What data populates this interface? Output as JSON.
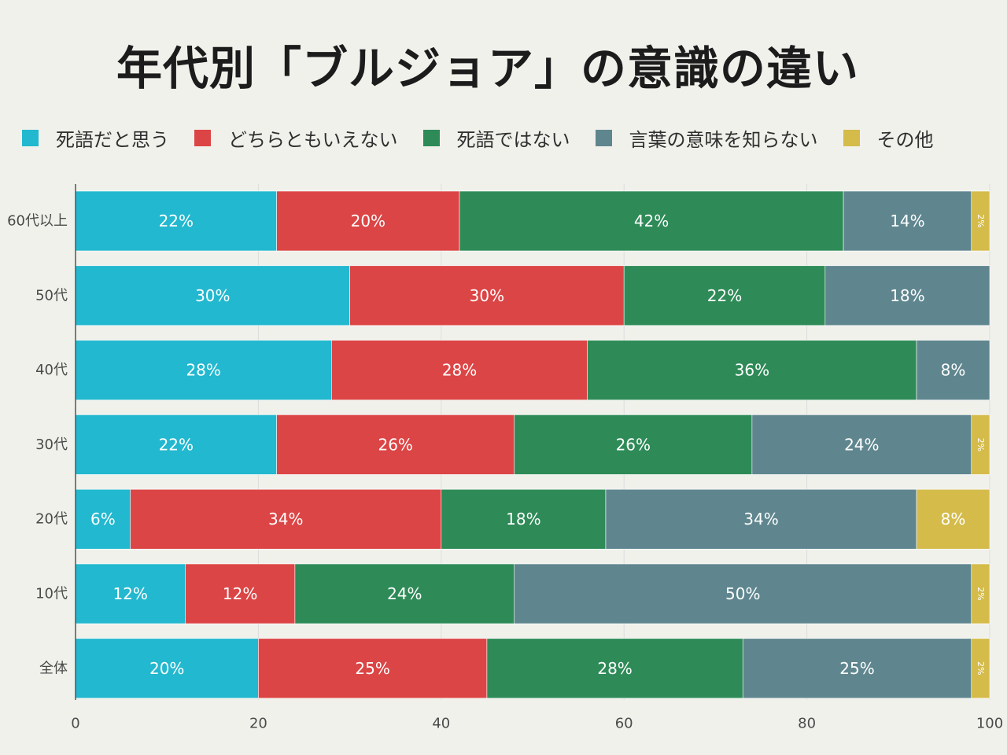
{
  "title": "年代別「ブルジョア」の意識の違い",
  "colors": {
    "background": "#f1f1ec",
    "gridline": "#dddddd",
    "axis": "#555555"
  },
  "chart_data": {
    "type": "bar",
    "orientation": "horizontal",
    "stacked": true,
    "title": "年代別「ブルジョア」の意識の違い",
    "xlabel": "",
    "ylabel": "",
    "xlim": [
      0,
      100
    ],
    "xticks": [
      0,
      20,
      40,
      60,
      80,
      100
    ],
    "grid": true,
    "legend_position": "top",
    "categories": [
      "60代以上",
      "50代",
      "40代",
      "30代",
      "20代",
      "10代",
      "全体"
    ],
    "series": [
      {
        "name": "死語だと思う",
        "color": "#22b8cf",
        "values": [
          22,
          30,
          28,
          22,
          6,
          12,
          20
        ]
      },
      {
        "name": "どちらともいえない",
        "color": "#dc4545",
        "values": [
          20,
          30,
          28,
          26,
          34,
          12,
          25
        ]
      },
      {
        "name": "死語ではない",
        "color": "#2e8b57",
        "values": [
          42,
          22,
          36,
          26,
          18,
          24,
          28
        ]
      },
      {
        "name": "言葉の意味を知らない",
        "color": "#5f868f",
        "values": [
          14,
          18,
          8,
          24,
          34,
          50,
          25
        ]
      },
      {
        "name": "その他",
        "color": "#d4bb4a",
        "values": [
          2,
          0,
          0,
          2,
          8,
          2,
          2
        ]
      }
    ],
    "value_suffix": "%"
  }
}
